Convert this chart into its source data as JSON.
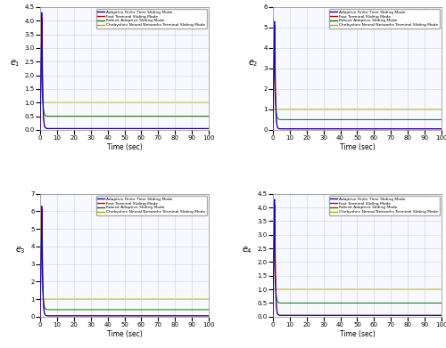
{
  "subplots": [
    {
      "ylabel": "e_1",
      "ylim": [
        0,
        4.5
      ],
      "yticks": [
        0,
        0.5,
        1.0,
        1.5,
        2.0,
        2.5,
        3.0,
        3.5,
        4.0,
        4.5
      ],
      "peak_blue": 4.3,
      "peak_red": 4.1,
      "peak_green": 3.3,
      "settle_blue": 0.05,
      "settle_red": 0.05,
      "settle_green": 0.5,
      "settle_yellow": 1.0
    },
    {
      "ylabel": "e_2",
      "ylim": [
        0,
        6
      ],
      "yticks": [
        0,
        1,
        2,
        3,
        4,
        5,
        6
      ],
      "peak_blue": 5.3,
      "peak_red": 5.1,
      "peak_green": 4.8,
      "settle_blue": 0.05,
      "settle_red": 0.05,
      "settle_green": 0.5,
      "settle_yellow": 1.0
    },
    {
      "ylabel": "e_3",
      "ylim": [
        0,
        7
      ],
      "yticks": [
        0,
        1,
        2,
        3,
        4,
        5,
        6,
        7
      ],
      "peak_blue": 6.3,
      "peak_red": 6.1,
      "peak_green": 6.2,
      "settle_blue": 0.05,
      "settle_red": 0.05,
      "settle_green": 0.4,
      "settle_yellow": 1.0
    },
    {
      "ylabel": "e_4",
      "ylim": [
        0,
        4.5
      ],
      "yticks": [
        0,
        0.5,
        1.0,
        1.5,
        2.0,
        2.5,
        3.0,
        3.5,
        4.0,
        4.5
      ],
      "peak_blue": 4.3,
      "peak_red": 4.1,
      "peak_green": 3.8,
      "settle_blue": 0.05,
      "settle_red": 0.05,
      "settle_green": 0.5,
      "settle_yellow": 1.0
    }
  ],
  "color_blue": "#0000cc",
  "color_red": "#cc0000",
  "color_green": "#007700",
  "color_yellow": "#aaaa00",
  "xlabel": "Time (sec)",
  "xlim": [
    0,
    100
  ],
  "xticks": [
    0,
    10,
    20,
    30,
    40,
    50,
    60,
    70,
    80,
    90,
    100
  ],
  "legend_labels": [
    "Adaptive Finite Time Sliding Mode",
    "Fast Terminal Sliding Mode",
    "Robust Adaptive Sliding Mode",
    "Chebyshev Neural Networks Terminal Sliding Mode"
  ],
  "grid_color": "#d0d0d0",
  "bg_color": "#f8f8ff",
  "fig_bg": "#ffffff",
  "linewidth": 0.7
}
